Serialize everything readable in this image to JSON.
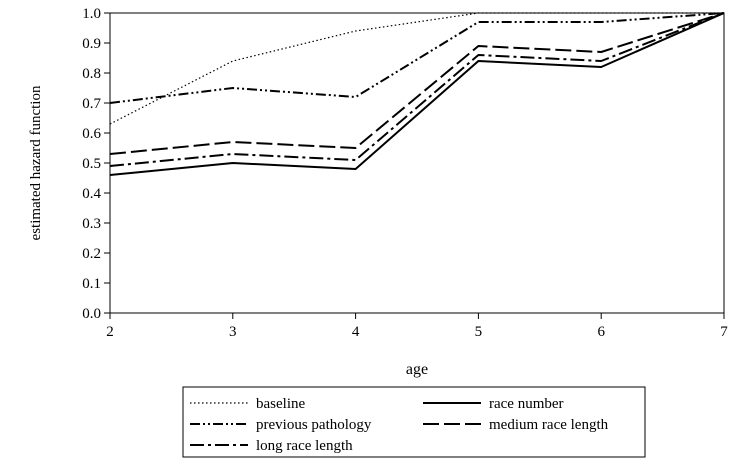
{
  "chart_data": {
    "type": "line",
    "title": "",
    "xlabel": "age",
    "ylabel": "estimated hazard function",
    "x": [
      2,
      3,
      4,
      5,
      6,
      7
    ],
    "x_ticks": [
      "2",
      "3",
      "4",
      "5",
      "6",
      "7"
    ],
    "xlim": [
      2,
      7
    ],
    "y_ticks": [
      "0.0",
      "0.1",
      "0.2",
      "0.3",
      "0.4",
      "0.5",
      "0.6",
      "0.7",
      "0.8",
      "0.9",
      "1.0"
    ],
    "ylim": [
      0,
      1.0
    ],
    "grid": false,
    "legend_placement": "bottom",
    "series": [
      {
        "name": "baseline",
        "style": "dotted",
        "values": [
          0.63,
          0.84,
          0.94,
          1.0,
          1.0,
          1.0
        ]
      },
      {
        "name": "race number",
        "style": "solid",
        "values": [
          0.46,
          0.5,
          0.48,
          0.84,
          0.82,
          1.0
        ]
      },
      {
        "name": "previous pathology",
        "style": "dash-dot-dot",
        "values": [
          0.7,
          0.75,
          0.72,
          0.97,
          0.97,
          1.0
        ]
      },
      {
        "name": "medium race length",
        "style": "long-dash",
        "values": [
          0.53,
          0.57,
          0.55,
          0.89,
          0.87,
          1.0
        ]
      },
      {
        "name": "long race length",
        "style": "dash-dot",
        "values": [
          0.49,
          0.53,
          0.51,
          0.86,
          0.84,
          1.0
        ]
      }
    ]
  }
}
